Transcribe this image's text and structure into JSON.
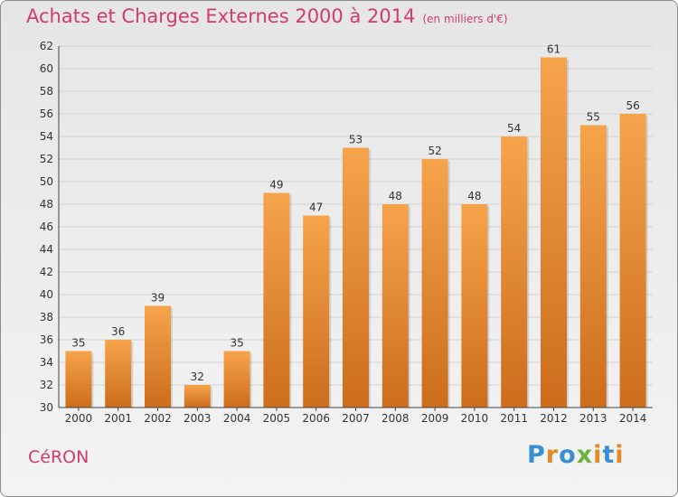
{
  "chart_data": {
    "type": "bar",
    "title": "Achats et Charges Externes 2000 à 2014",
    "subtitle": "(en milliers d'€)",
    "categories": [
      "2000",
      "2001",
      "2002",
      "2003",
      "2004",
      "2005",
      "2006",
      "2007",
      "2008",
      "2009",
      "2010",
      "2011",
      "2012",
      "2013",
      "2014"
    ],
    "values": [
      35,
      36,
      39,
      32,
      35,
      49,
      47,
      53,
      48,
      52,
      48,
      54,
      61,
      55,
      56
    ],
    "ylim": [
      30,
      62
    ],
    "yticks": [
      30,
      32,
      34,
      36,
      38,
      40,
      42,
      44,
      46,
      48,
      50,
      52,
      54,
      56,
      58,
      60,
      62
    ],
    "grid": true,
    "bar_color_top": "#f6a44c",
    "bar_color_bottom": "#cc6d1c"
  },
  "footer": {
    "location": "CéRON",
    "logo": "Proxiti",
    "logo_colors": [
      "#3a8fd1",
      "#e58a1f",
      "#3a8fd1",
      "#6cb33f",
      "#e58a1f",
      "#3a8fd1",
      "#e58a1f"
    ]
  }
}
